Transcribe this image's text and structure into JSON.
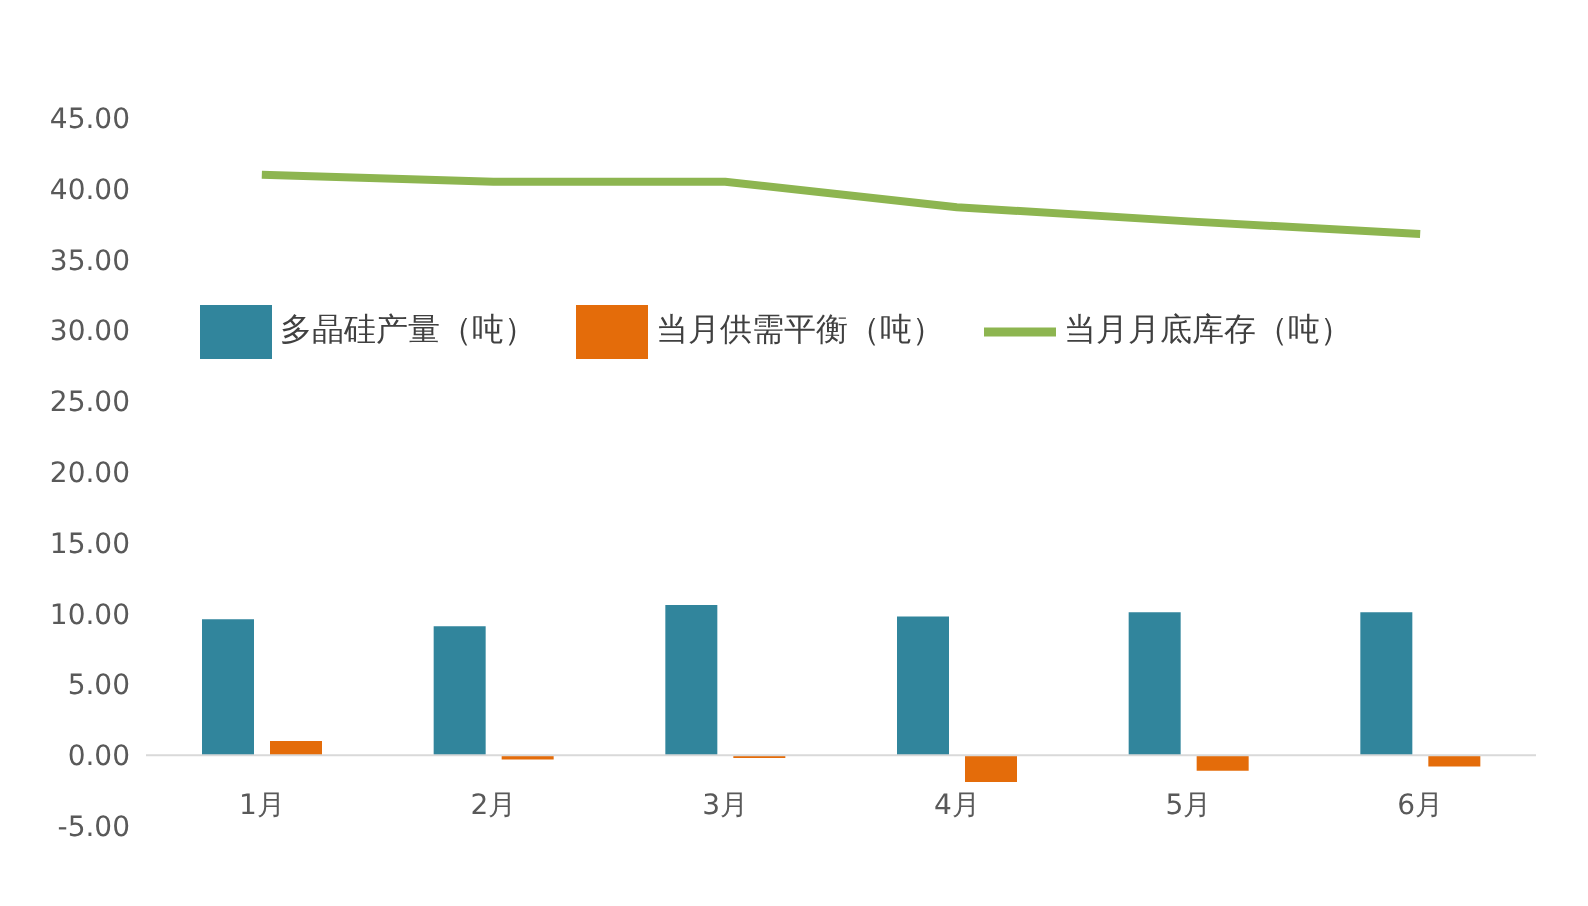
{
  "chart_data": {
    "type": "bar",
    "categories": [
      "1月",
      "2月",
      "3月",
      "4月",
      "5月",
      "6月"
    ],
    "series": [
      {
        "name": "多晶硅产量（吨）",
        "color": "#31859c",
        "values": [
          9.6,
          9.1,
          10.6,
          9.8,
          10.1,
          10.1
        ]
      },
      {
        "name": "当月供需平衡（吨）",
        "color": "#e46c0a",
        "values": [
          1.0,
          -0.3,
          -0.2,
          -1.9,
          -1.1,
          -0.8
        ]
      },
      {
        "name": "当月月底库存（吨）",
        "type": "line",
        "color": "#8db550",
        "values": [
          41.0,
          40.5,
          40.5,
          38.7,
          37.7,
          36.8
        ]
      }
    ],
    "ylim": [
      -5,
      45
    ],
    "yticks": [
      {
        "value": -5,
        "label": "-5.00"
      },
      {
        "value": 0,
        "label": "0.00"
      },
      {
        "value": 5,
        "label": "5.00"
      },
      {
        "value": 10,
        "label": "10.00"
      },
      {
        "value": 15,
        "label": "15.00"
      },
      {
        "value": 20,
        "label": "20.00"
      },
      {
        "value": 25,
        "label": "25.00"
      },
      {
        "value": 30,
        "label": "30.00"
      },
      {
        "value": 35,
        "label": "35.00"
      },
      {
        "value": 40,
        "label": "40.00"
      },
      {
        "value": 45,
        "label": "45.00"
      }
    ],
    "legend": "top",
    "grid": false,
    "marker": "none"
  }
}
